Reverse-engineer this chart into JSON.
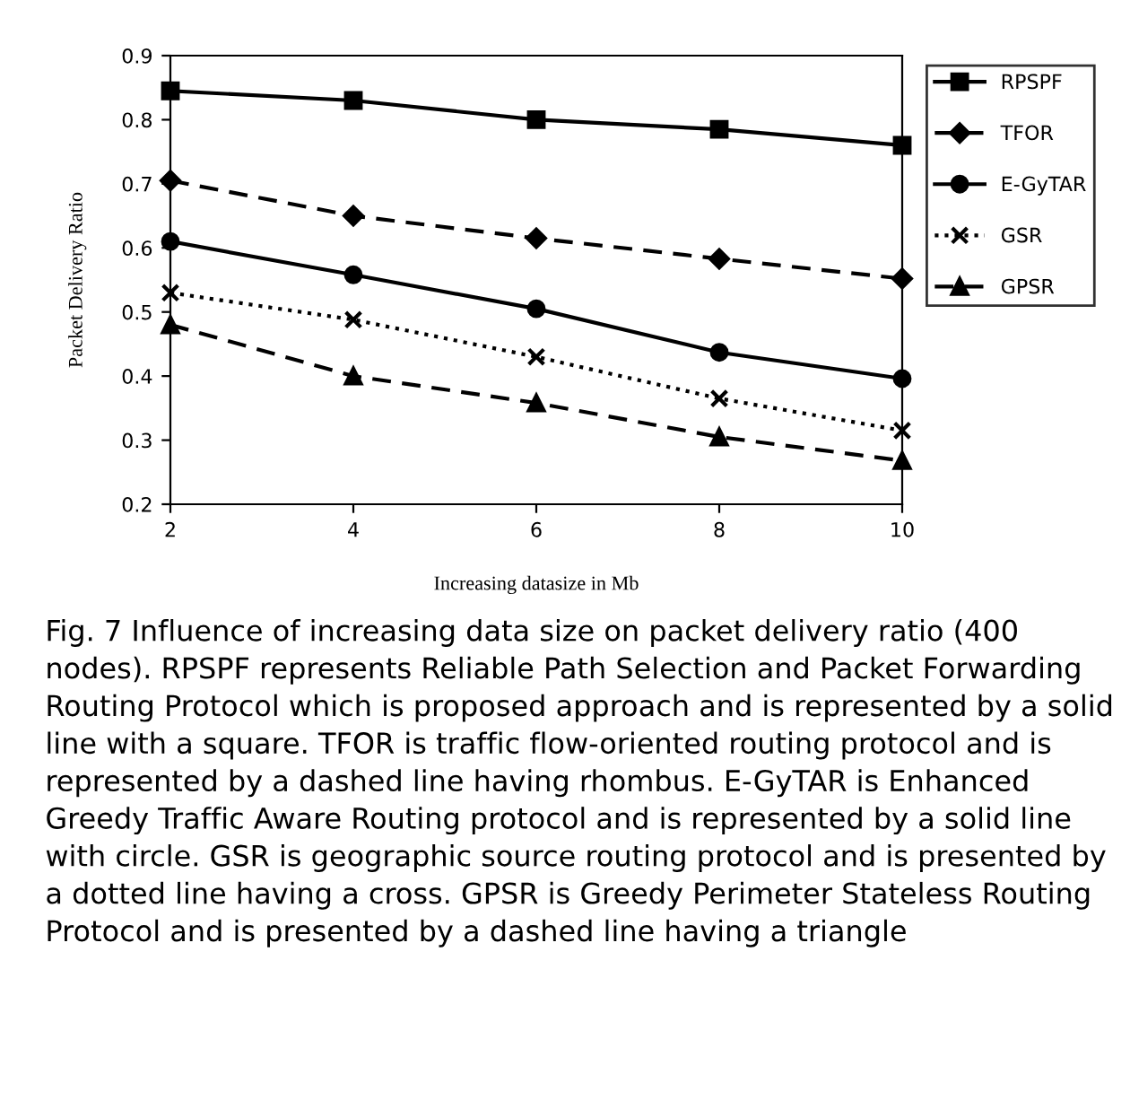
{
  "chart_data": {
    "type": "line",
    "xlabel": "Increasing datasize in Mb",
    "ylabel": "Packet Delivery Ratio",
    "x": [
      2,
      4,
      6,
      8,
      10
    ],
    "series": [
      {
        "name": "RPSPF",
        "color": "#000000",
        "marker": "square",
        "line_style": "solid",
        "values": [
          0.845,
          0.83,
          0.8,
          0.785,
          0.76
        ]
      },
      {
        "name": "TFOR",
        "color": "#000000",
        "marker": "diamond",
        "line_style": "dashed",
        "values": [
          0.705,
          0.65,
          0.615,
          0.583,
          0.552
        ]
      },
      {
        "name": "E-GyTAR",
        "color": "#000000",
        "marker": "circle",
        "line_style": "solid",
        "values": [
          0.61,
          0.558,
          0.505,
          0.437,
          0.396
        ]
      },
      {
        "name": "GSR",
        "color": "#000000",
        "marker": "cross",
        "line_style": "dotted",
        "values": [
          0.53,
          0.488,
          0.43,
          0.365,
          0.315
        ]
      },
      {
        "name": "GPSR",
        "color": "#000000",
        "marker": "triangle",
        "line_style": "dashed",
        "values": [
          0.48,
          0.4,
          0.358,
          0.305,
          0.268
        ]
      }
    ],
    "xlim": [
      2,
      10
    ],
    "xticks": [
      2,
      4,
      6,
      8,
      10
    ],
    "ylim": [
      0.2,
      0.9
    ],
    "yticks": [
      0.2,
      0.3,
      0.4,
      0.5,
      0.6,
      0.7,
      0.8,
      0.9
    ],
    "grid": false,
    "legend": "top right",
    "annotations": [
      "Fig. 7 Influence of increasing data size on packet delivery ratio (400 nodes). RPSPF represents Reliable Path Selection and Packet Forwarding Routing Protocol which is proposed approach and is represented by a solid line with a square. TFOR is traffic flow-oriented routing protocol and is represented by a dashed line having rhombus. E-GyTAR is Enhanced Greedy Traffic Aware Routing protocol and is represented by a solid line with circle. GSR is geographic source routing protocol and is presented by a dotted line having a cross. GPSR is Greedy Perimeter Stateless Routing Protocol and is presented by a dashed line having a triangle"
    ]
  }
}
